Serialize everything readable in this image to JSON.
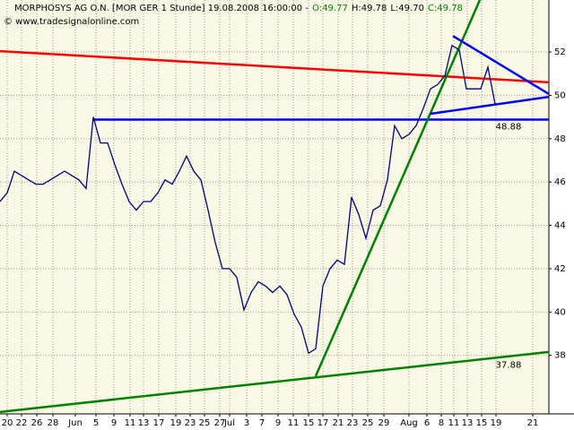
{
  "chart_data": {
    "type": "line",
    "title": "MORPHOSYS AG O.N. [MOR GER  1 Stunde] 19.08.2008 16:00:00 -",
    "quote": [
      {
        "text": "O:49.77",
        "color": "#008000"
      },
      {
        "text": "H:49.78",
        "color": "#000000"
      },
      {
        "text": "L:49.70",
        "color": "#000000"
      },
      {
        "text": "C:49.78",
        "color": "#008000"
      }
    ],
    "subtitle": "© www.tradesignalonline.com",
    "x": [
      0,
      2,
      4,
      6,
      8,
      10,
      12,
      14,
      16,
      18,
      20,
      22,
      24,
      26,
      28,
      30,
      32,
      34,
      36,
      38,
      40,
      42,
      44,
      46,
      48,
      50,
      52,
      54,
      56,
      58,
      60,
      62,
      64,
      66,
      68,
      70,
      72,
      74,
      76,
      78,
      80,
      82,
      84,
      86,
      88,
      90,
      92,
      94,
      96,
      98,
      100,
      102,
      104,
      106,
      108,
      110,
      112,
      114,
      116,
      118,
      120,
      122,
      124,
      126,
      128,
      130,
      132,
      134,
      136,
      138
    ],
    "series": [
      {
        "name": "MORPHOSYS AG O.N.",
        "color": "#000080",
        "values": [
          45.1,
          45.5,
          46.5,
          46.3,
          46.1,
          45.9,
          45.9,
          46.1,
          46.3,
          46.5,
          46.3,
          46.1,
          45.7,
          49.0,
          47.8,
          47.8,
          46.8,
          45.9,
          45.1,
          44.7,
          45.1,
          45.1,
          45.5,
          46.1,
          45.9,
          46.5,
          47.2,
          46.5,
          46.1,
          44.7,
          43.2,
          42.0,
          42.0,
          41.6,
          40.1,
          40.9,
          41.4,
          41.2,
          40.9,
          41.2,
          40.8,
          39.9,
          39.3,
          38.1,
          38.3,
          41.2,
          42.0,
          42.4,
          42.2,
          45.3,
          44.5,
          43.4,
          44.7,
          44.9,
          46.1,
          48.6,
          48.0,
          48.2,
          48.6,
          49.4,
          50.3,
          50.5,
          50.9,
          52.3,
          52.1,
          50.3,
          50.3,
          50.3,
          51.3,
          49.6
        ]
      }
    ],
    "trendlines": [
      {
        "color": "#ff0000",
        "points": [
          [
            0,
            52.04
          ],
          [
            153,
            50.6
          ]
        ]
      },
      {
        "color": "#0000ff",
        "points": [
          [
            26,
            48.88
          ],
          [
            153,
            48.88
          ]
        ],
        "label": 48.88
      },
      {
        "color": "#008000",
        "points": [
          [
            88,
            37.04
          ],
          [
            133.75,
            54.4
          ]
        ]
      },
      {
        "color": "#008000",
        "points": [
          [
            0,
            35.39
          ],
          [
            153,
            38.16
          ]
        ],
        "label": 37.88
      },
      {
        "color": "#0000ff",
        "points": [
          [
            126.25,
            52.74
          ],
          [
            153,
            50.06
          ]
        ]
      },
      {
        "color": "#0000ff",
        "points": [
          [
            120,
            49.15
          ],
          [
            153,
            49.93
          ]
        ]
      }
    ],
    "xlim": [
      0,
      153
    ],
    "ylim": [
      35.3,
      54.4
    ],
    "yticks": [
      38,
      40,
      42,
      44,
      46,
      48,
      50,
      52
    ],
    "xticks": [
      {
        "value": 2,
        "label": "20"
      },
      {
        "value": 6,
        "label": "22"
      },
      {
        "value": 10.25,
        "label": "26"
      },
      {
        "value": 14.75,
        "label": "28"
      },
      {
        "value": 21,
        "label": "Jun"
      },
      {
        "value": 26.75,
        "label": "5"
      },
      {
        "value": 31.75,
        "label": "9"
      },
      {
        "value": 36.25,
        "label": "11"
      },
      {
        "value": 40,
        "label": "13"
      },
      {
        "value": 44.25,
        "label": "17"
      },
      {
        "value": 49,
        "label": "19"
      },
      {
        "value": 53,
        "label": "23"
      },
      {
        "value": 57,
        "label": "25"
      },
      {
        "value": 61.25,
        "label": "27"
      },
      {
        "value": 64,
        "label": "Jul"
      },
      {
        "value": 68.75,
        "label": "3"
      },
      {
        "value": 73,
        "label": "7"
      },
      {
        "value": 77.5,
        "label": "9"
      },
      {
        "value": 81.75,
        "label": "11"
      },
      {
        "value": 86,
        "label": "15"
      },
      {
        "value": 90,
        "label": "17"
      },
      {
        "value": 94.25,
        "label": "21"
      },
      {
        "value": 98.25,
        "label": "23"
      },
      {
        "value": 102.5,
        "label": "25"
      },
      {
        "value": 107,
        "label": "29"
      },
      {
        "value": 114,
        "label": "Aug"
      },
      {
        "value": 119,
        "label": "6"
      },
      {
        "value": 123,
        "label": "8"
      },
      {
        "value": 126.5,
        "label": "11"
      },
      {
        "value": 130.25,
        "label": "13"
      },
      {
        "value": 134.25,
        "label": "15"
      },
      {
        "value": 138.25,
        "label": "19"
      },
      {
        "value": 148.5,
        "label": "21"
      }
    ],
    "grid": true,
    "background": "#f8f8e4"
  }
}
